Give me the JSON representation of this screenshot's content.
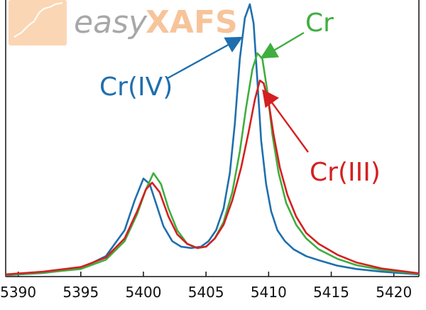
{
  "logo": {
    "text_light": "easy",
    "text_bold": "XAFS",
    "color_light": "#a8a8a8",
    "color_bold": "#f7c49a",
    "badge_color": "#fbd6b4"
  },
  "chart_data": {
    "type": "line",
    "title": "",
    "xlabel": "",
    "ylabel": "",
    "xlim": [
      5389,
      5422
    ],
    "ylim": [
      0,
      1
    ],
    "xticks": [
      5390,
      5395,
      5400,
      5405,
      5410,
      5415,
      5420
    ],
    "yticks_shown": false,
    "grid": false,
    "legend": "none",
    "annotations": [
      "Cr(IV)",
      "Cr",
      "Cr(III)"
    ],
    "series": [
      {
        "name": "Cr(IV)",
        "color": "#1f6fae",
        "x": [
          5389,
          5392,
          5395,
          5397,
          5398.5,
          5399.3,
          5400,
          5400.5,
          5401,
          5401.6,
          5402.3,
          5403,
          5403.8,
          5404.6,
          5405.2,
          5405.8,
          5406.4,
          5406.9,
          5407.3,
          5407.7,
          5408.1,
          5408.5,
          5408.8,
          5409.1,
          5409.4,
          5409.8,
          5410.2,
          5410.7,
          5411.3,
          5412,
          5413,
          5414,
          5415.5,
          5417,
          5419,
          5422
        ],
        "y": [
          0.005,
          0.013,
          0.03,
          0.075,
          0.17,
          0.28,
          0.36,
          0.34,
          0.27,
          0.185,
          0.13,
          0.11,
          0.105,
          0.11,
          0.13,
          0.17,
          0.25,
          0.38,
          0.56,
          0.8,
          0.95,
          1.0,
          0.93,
          0.72,
          0.5,
          0.34,
          0.24,
          0.17,
          0.13,
          0.1,
          0.075,
          0.06,
          0.04,
          0.028,
          0.018,
          0.008
        ]
      },
      {
        "name": "Cr",
        "color": "#3fae3f",
        "x": [
          5389,
          5392,
          5395,
          5397,
          5398.5,
          5399.5,
          5400.2,
          5400.8,
          5401.4,
          5402,
          5402.7,
          5403.5,
          5404.3,
          5405,
          5405.7,
          5406.4,
          5407.1,
          5407.7,
          5408.2,
          5408.7,
          5409.1,
          5409.5,
          5409.9,
          5410.3,
          5410.8,
          5411.4,
          5412.2,
          5413,
          5414,
          5415.5,
          5417,
          5419,
          5422
        ],
        "y": [
          0.006,
          0.014,
          0.028,
          0.062,
          0.13,
          0.23,
          0.32,
          0.38,
          0.34,
          0.25,
          0.17,
          0.12,
          0.105,
          0.11,
          0.14,
          0.2,
          0.31,
          0.46,
          0.62,
          0.76,
          0.82,
          0.8,
          0.68,
          0.52,
          0.38,
          0.27,
          0.19,
          0.14,
          0.1,
          0.065,
          0.042,
          0.025,
          0.01
        ]
      },
      {
        "name": "Cr(III)",
        "color": "#d42020",
        "x": [
          5389,
          5392,
          5395,
          5397,
          5398.5,
          5399.5,
          5400.2,
          5400.7,
          5401.3,
          5402,
          5402.7,
          5403.5,
          5404.3,
          5405,
          5405.7,
          5406.4,
          5407.1,
          5407.8,
          5408.4,
          5408.9,
          5409.3,
          5409.6,
          5410,
          5410.4,
          5410.9,
          5411.5,
          5412.2,
          5413,
          5414,
          5415.5,
          5417,
          5419,
          5422
        ],
        "y": [
          0.008,
          0.018,
          0.035,
          0.07,
          0.14,
          0.24,
          0.32,
          0.345,
          0.31,
          0.22,
          0.155,
          0.12,
          0.105,
          0.11,
          0.14,
          0.19,
          0.28,
          0.4,
          0.53,
          0.65,
          0.72,
          0.71,
          0.64,
          0.52,
          0.4,
          0.3,
          0.22,
          0.16,
          0.12,
          0.08,
          0.052,
          0.03,
          0.012
        ]
      }
    ]
  }
}
